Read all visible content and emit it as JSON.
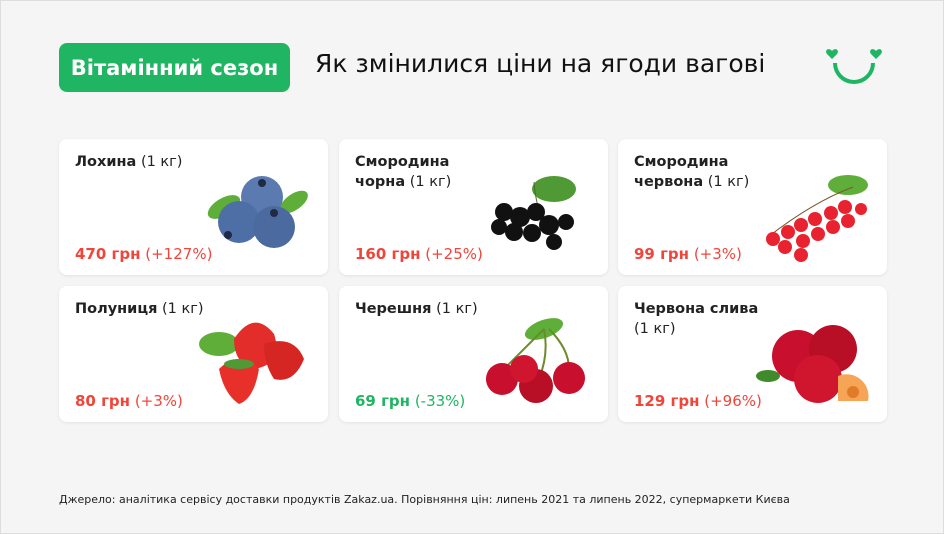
{
  "header": {
    "badge": "Вітамінний сезон",
    "title": "Як змінилися ціни на ягоди вагові"
  },
  "colors": {
    "accent": "#1fb563",
    "increase": "#f0453a",
    "decrease": "#1fb563"
  },
  "logo": "smiley-hearts-logo",
  "cards": [
    {
      "name": "Лохина",
      "unit": "(1 кг)",
      "price": "470 грн",
      "change": "(+127%)",
      "trend": "up",
      "icon": "blueberry-image"
    },
    {
      "name": "Смородина чорна",
      "unit": "(1 кг)",
      "price": "160 грн",
      "change": "(+25%)",
      "trend": "up",
      "icon": "blackcurrant-image"
    },
    {
      "name": "Смородина червона",
      "unit": "(1 кг)",
      "price": "99 грн",
      "change": "(+3%)",
      "trend": "up",
      "icon": "redcurrant-image"
    },
    {
      "name": "Полуниця",
      "unit": "(1 кг)",
      "price": "80 грн",
      "change": "(+3%)",
      "trend": "up",
      "icon": "strawberry-image"
    },
    {
      "name": "Черешня",
      "unit": "(1 кг)",
      "price": "69 грн",
      "change": "(-33%)",
      "trend": "down",
      "icon": "cherry-image"
    },
    {
      "name": "Червона слива",
      "unit": "(1 кг)",
      "price": "129 грн",
      "change": "(+96%)",
      "trend": "up",
      "icon": "red-plum-image"
    }
  ],
  "footer": {
    "source": "Джерело: аналітика сервісу доставки продуктів Zakaz.ua. Порівняння цін: липень 2021 та липень 2022, супермаркети Києва"
  }
}
